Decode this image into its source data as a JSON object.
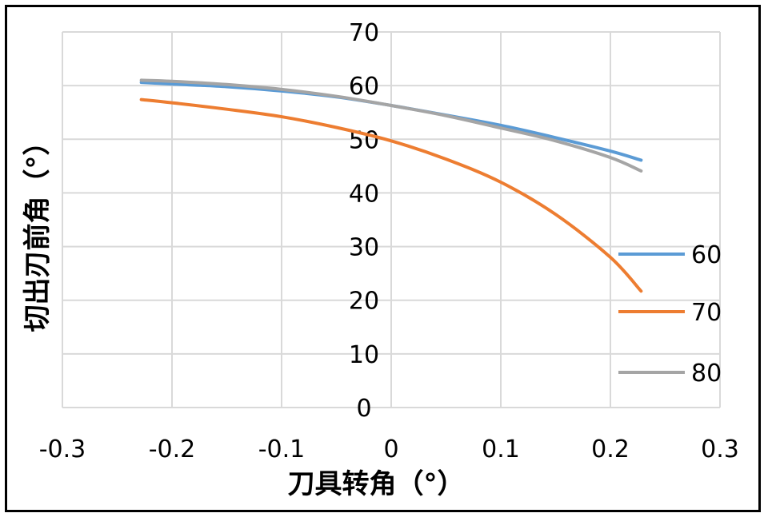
{
  "chart_data": {
    "type": "line",
    "xlabel": "刀具转角（°）",
    "ylabel": "切出刃前角（°）",
    "xlim": [
      -0.3,
      0.3
    ],
    "ylim": [
      0,
      70
    ],
    "x_ticks": [
      "-0.3",
      "-0.2",
      "-0.1",
      "0",
      "0.1",
      "0.2",
      "0.3"
    ],
    "y_ticks": [
      "0",
      "10",
      "20",
      "30",
      "40",
      "50",
      "60",
      "70"
    ],
    "grid": true,
    "legend_position": "right",
    "x": [
      -0.228,
      -0.2,
      -0.15,
      -0.1,
      -0.05,
      0,
      0.05,
      0.1,
      0.15,
      0.2,
      0.228
    ],
    "series": [
      {
        "name": "60",
        "color": "#5B9BD5",
        "values": [
          60.6,
          60.3,
          59.8,
          59.0,
          57.9,
          56.3,
          54.5,
          52.6,
          50.3,
          47.8,
          46.1
        ]
      },
      {
        "name": "70",
        "color": "#ED7D31",
        "values": [
          57.4,
          56.8,
          55.6,
          54.2,
          52.2,
          49.7,
          46.3,
          42.0,
          36.0,
          28.0,
          21.7
        ]
      },
      {
        "name": "80",
        "color": "#A5A5A5",
        "values": [
          61.0,
          60.8,
          60.2,
          59.3,
          58.0,
          56.3,
          54.4,
          52.1,
          49.7,
          46.6,
          44.1
        ]
      }
    ]
  }
}
